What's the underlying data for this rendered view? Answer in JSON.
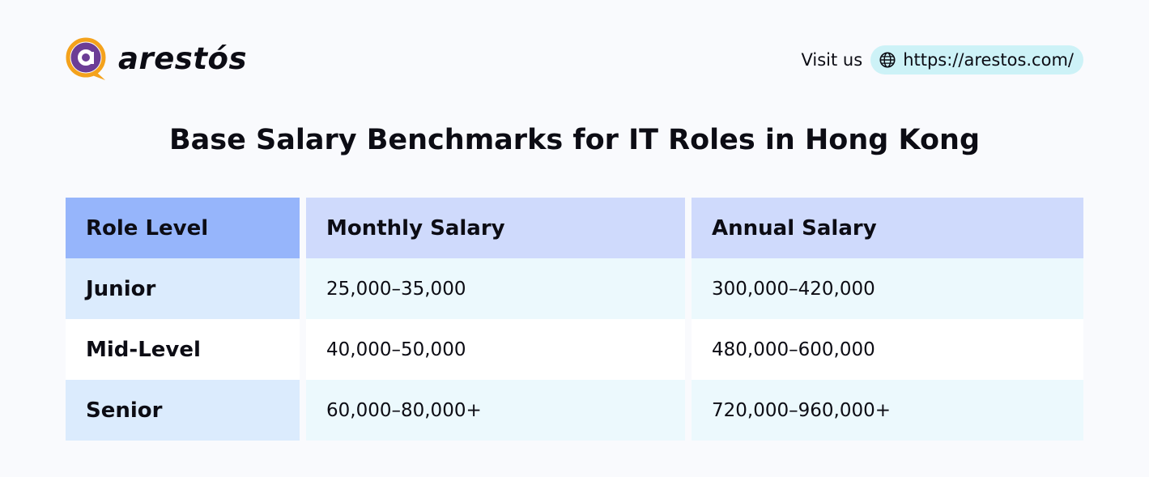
{
  "brand": {
    "name": "arestós",
    "colors": {
      "orange": "#f4a21c",
      "purple": "#6c3d96"
    },
    "icon": "arestos-logo-icon"
  },
  "visit": {
    "label": "Visit us",
    "url_text": "https://arestos.com/",
    "icon": "globe-icon",
    "pill_color": "#cdf2f7"
  },
  "title": "Base Salary Benchmarks for IT Roles in Hong Kong",
  "table": {
    "headers": [
      "Role Level",
      "Monthly Salary",
      "Annual Salary"
    ],
    "header_colors": [
      "#96b5fb",
      "#cfdafc",
      "#cfdafc"
    ],
    "rows": [
      [
        "Junior",
        "25,000–35,000",
        "300,000–420,000"
      ],
      [
        "Mid-Level",
        "40,000–50,000",
        "480,000–600,000"
      ],
      [
        "Senior",
        "60,000–80,000+",
        "720,000–960,000+"
      ]
    ]
  }
}
